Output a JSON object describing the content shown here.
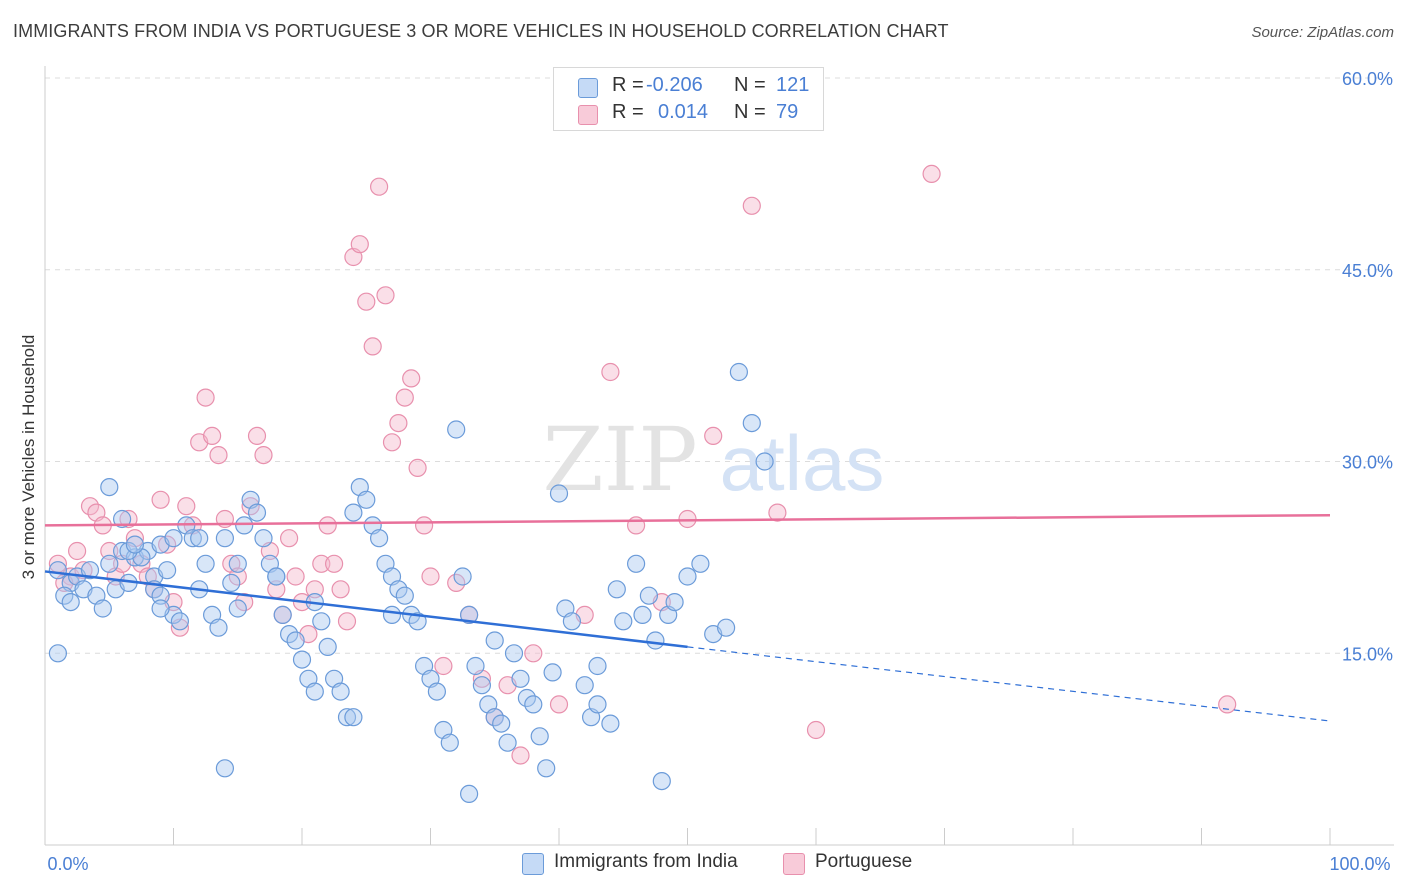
{
  "header": {
    "title": "IMMIGRANTS FROM INDIA VS PORTUGUESE 3 OR MORE VEHICLES IN HOUSEHOLD CORRELATION CHART",
    "source": "Source: ZipAtlas.com"
  },
  "watermark": {
    "zip": "ZIP",
    "atlas": "atlas"
  },
  "legend_top": {
    "rows": [
      {
        "r_label": "R =",
        "r_value": "-0.206",
        "n_label": "N =",
        "n_value": "121"
      },
      {
        "r_label": "R =",
        "r_value": "0.014",
        "n_label": "N =",
        "n_value": "79"
      }
    ]
  },
  "colors": {
    "india_fill": "#a9c8f0",
    "india_stroke": "#6b9bd9",
    "india_line": "#2f6fd6",
    "portuguese_fill": "#f5b8cc",
    "portuguese_stroke": "#e890ad",
    "portuguese_line": "#e8709a",
    "axis_label": "#4a7fd4",
    "grid": "#dcdcdc"
  },
  "chart_data": {
    "type": "scatter",
    "title": "IMMIGRANTS FROM INDIA VS PORTUGUESE 3 OR MORE VEHICLES IN HOUSEHOLD CORRELATION CHART",
    "xlabel": "",
    "ylabel": "3 or more Vehicles in Household",
    "xlim": [
      0,
      100
    ],
    "ylim": [
      0,
      60
    ],
    "x_tick_labels": [
      "0.0%",
      "100.0%"
    ],
    "y_ticks": [
      15,
      30,
      45,
      60
    ],
    "y_tick_labels": [
      "15.0%",
      "30.0%",
      "45.0%",
      "60.0%"
    ],
    "grid": true,
    "legend_position": "bottom",
    "series": [
      {
        "name": "Immigrants from India",
        "R": -0.206,
        "N": 121,
        "trend": {
          "solid": [
            [
              0,
              21.4
            ],
            [
              50,
              15.5
            ]
          ],
          "dashed": [
            [
              50,
              15.5
            ],
            [
              100,
              9.7
            ]
          ]
        },
        "points": [
          [
            1,
            21.5
          ],
          [
            2,
            20.5
          ],
          [
            1.5,
            19.5
          ],
          [
            2.5,
            21
          ],
          [
            3,
            20
          ],
          [
            2,
            19
          ],
          [
            4,
            19.5
          ],
          [
            3.5,
            21.5
          ],
          [
            5,
            22
          ],
          [
            6,
            23
          ],
          [
            1,
            15
          ],
          [
            4.5,
            18.5
          ],
          [
            5.5,
            20
          ],
          [
            6.5,
            20.5
          ],
          [
            7,
            22.5
          ],
          [
            8,
            23
          ],
          [
            8.5,
            21
          ],
          [
            9,
            23.5
          ],
          [
            10,
            24
          ],
          [
            7.5,
            22.5
          ],
          [
            5,
            28
          ],
          [
            6,
            25.5
          ],
          [
            6.5,
            23
          ],
          [
            7,
            23.5
          ],
          [
            8.5,
            20
          ],
          [
            9,
            19.5
          ],
          [
            9.5,
            21.5
          ],
          [
            10,
            18
          ],
          [
            10.5,
            17.5
          ],
          [
            11,
            25
          ],
          [
            11.5,
            24
          ],
          [
            12,
            24
          ],
          [
            12.5,
            22
          ],
          [
            13,
            18
          ],
          [
            13.5,
            17
          ],
          [
            14,
            24
          ],
          [
            14.5,
            20.5
          ],
          [
            15,
            18.5
          ],
          [
            15.5,
            25
          ],
          [
            16,
            27
          ],
          [
            16.5,
            26
          ],
          [
            17,
            24
          ],
          [
            17.5,
            22
          ],
          [
            18,
            21
          ],
          [
            18.5,
            18
          ],
          [
            19,
            16.5
          ],
          [
            19.5,
            16
          ],
          [
            20,
            14.5
          ],
          [
            20.5,
            13
          ],
          [
            21,
            12
          ],
          [
            21.5,
            17.5
          ],
          [
            22,
            15.5
          ],
          [
            22.5,
            13
          ],
          [
            23,
            12
          ],
          [
            23.5,
            10
          ],
          [
            24,
            10
          ],
          [
            24.5,
            28
          ],
          [
            25,
            27
          ],
          [
            25.5,
            25
          ],
          [
            26,
            24
          ],
          [
            26.5,
            22
          ],
          [
            27,
            21
          ],
          [
            27.5,
            20
          ],
          [
            28,
            19.5
          ],
          [
            28.5,
            18
          ],
          [
            29,
            17.5
          ],
          [
            29.5,
            14
          ],
          [
            30,
            13
          ],
          [
            30.5,
            12
          ],
          [
            31,
            9
          ],
          [
            31.5,
            8
          ],
          [
            32,
            32.5
          ],
          [
            32.5,
            21
          ],
          [
            33,
            18
          ],
          [
            33.5,
            14
          ],
          [
            34,
            12.5
          ],
          [
            34.5,
            11
          ],
          [
            35,
            10
          ],
          [
            35.5,
            9.5
          ],
          [
            36,
            8
          ],
          [
            36.5,
            15
          ],
          [
            37,
            13
          ],
          [
            37.5,
            11.5
          ],
          [
            38,
            11
          ],
          [
            38.5,
            8.5
          ],
          [
            39,
            6
          ],
          [
            39.5,
            13.5
          ],
          [
            40,
            27.5
          ],
          [
            40.5,
            18.5
          ],
          [
            41,
            17.5
          ],
          [
            42,
            12.5
          ],
          [
            42.5,
            10
          ],
          [
            43,
            11
          ],
          [
            44,
            9.5
          ],
          [
            44.5,
            20
          ],
          [
            45,
            17.5
          ],
          [
            46,
            22
          ],
          [
            46.5,
            18
          ],
          [
            47,
            19.5
          ],
          [
            47.5,
            16
          ],
          [
            48,
            5
          ],
          [
            48.5,
            18
          ],
          [
            49,
            19
          ],
          [
            50,
            21
          ],
          [
            51,
            22
          ],
          [
            52,
            16.5
          ],
          [
            53,
            17
          ],
          [
            54,
            37
          ],
          [
            55,
            33
          ],
          [
            56,
            30
          ],
          [
            14,
            6
          ],
          [
            33,
            4
          ],
          [
            12,
            20
          ],
          [
            15,
            22
          ],
          [
            18,
            21
          ],
          [
            21,
            19
          ],
          [
            24,
            26
          ],
          [
            27,
            18
          ],
          [
            35,
            16
          ],
          [
            43,
            14
          ],
          [
            9,
            18.5
          ]
        ]
      },
      {
        "name": "Portuguese",
        "R": 0.014,
        "N": 79,
        "trend": {
          "solid": [
            [
              0,
              25.0
            ],
            [
              100,
              25.8
            ]
          ]
        },
        "points": [
          [
            1,
            22
          ],
          [
            2,
            21
          ],
          [
            1.5,
            20.5
          ],
          [
            2.5,
            23
          ],
          [
            3,
            21.5
          ],
          [
            3.5,
            26.5
          ],
          [
            4,
            26
          ],
          [
            4.5,
            25
          ],
          [
            5,
            23
          ],
          [
            5.5,
            21
          ],
          [
            6,
            22
          ],
          [
            6.5,
            25.5
          ],
          [
            7,
            24
          ],
          [
            7.5,
            22
          ],
          [
            8,
            21
          ],
          [
            8.5,
            20
          ],
          [
            9,
            27
          ],
          [
            9.5,
            23.5
          ],
          [
            10,
            19
          ],
          [
            10.5,
            17
          ],
          [
            11,
            26.5
          ],
          [
            11.5,
            25
          ],
          [
            12,
            31.5
          ],
          [
            12.5,
            35
          ],
          [
            13,
            32
          ],
          [
            13.5,
            30.5
          ],
          [
            14,
            25.5
          ],
          [
            14.5,
            22
          ],
          [
            15,
            21
          ],
          [
            15.5,
            19
          ],
          [
            16,
            26.5
          ],
          [
            16.5,
            32
          ],
          [
            17,
            30.5
          ],
          [
            17.5,
            23
          ],
          [
            18,
            20
          ],
          [
            18.5,
            18
          ],
          [
            19,
            24
          ],
          [
            19.5,
            21
          ],
          [
            20,
            19
          ],
          [
            20.5,
            16.5
          ],
          [
            21,
            20
          ],
          [
            21.5,
            22
          ],
          [
            22,
            25
          ],
          [
            22.5,
            22
          ],
          [
            23,
            20
          ],
          [
            23.5,
            17.5
          ],
          [
            24,
            46
          ],
          [
            24.5,
            47
          ],
          [
            25,
            42.5
          ],
          [
            25.5,
            39
          ],
          [
            26,
            51.5
          ],
          [
            26.5,
            43
          ],
          [
            27,
            31.5
          ],
          [
            27.5,
            33
          ],
          [
            28,
            35
          ],
          [
            28.5,
            36.5
          ],
          [
            29,
            29.5
          ],
          [
            29.5,
            25
          ],
          [
            30,
            21
          ],
          [
            31,
            14
          ],
          [
            32,
            20.5
          ],
          [
            33,
            18
          ],
          [
            34,
            13
          ],
          [
            35,
            10
          ],
          [
            36,
            12.5
          ],
          [
            37,
            7
          ],
          [
            38,
            15
          ],
          [
            40,
            11
          ],
          [
            42,
            18
          ],
          [
            44,
            37
          ],
          [
            46,
            25
          ],
          [
            48,
            19
          ],
          [
            50,
            25.5
          ],
          [
            52,
            32
          ],
          [
            55,
            50
          ],
          [
            57,
            26
          ],
          [
            60,
            9
          ],
          [
            69,
            52.5
          ],
          [
            92,
            11
          ]
        ]
      }
    ]
  },
  "axis": {
    "x_left": "0.0%",
    "x_right": "100.0%",
    "y_label": "3 or more Vehicles in Household"
  },
  "legend_bottom": {
    "items": [
      {
        "label": "Immigrants from India"
      },
      {
        "label": "Portuguese"
      }
    ]
  }
}
